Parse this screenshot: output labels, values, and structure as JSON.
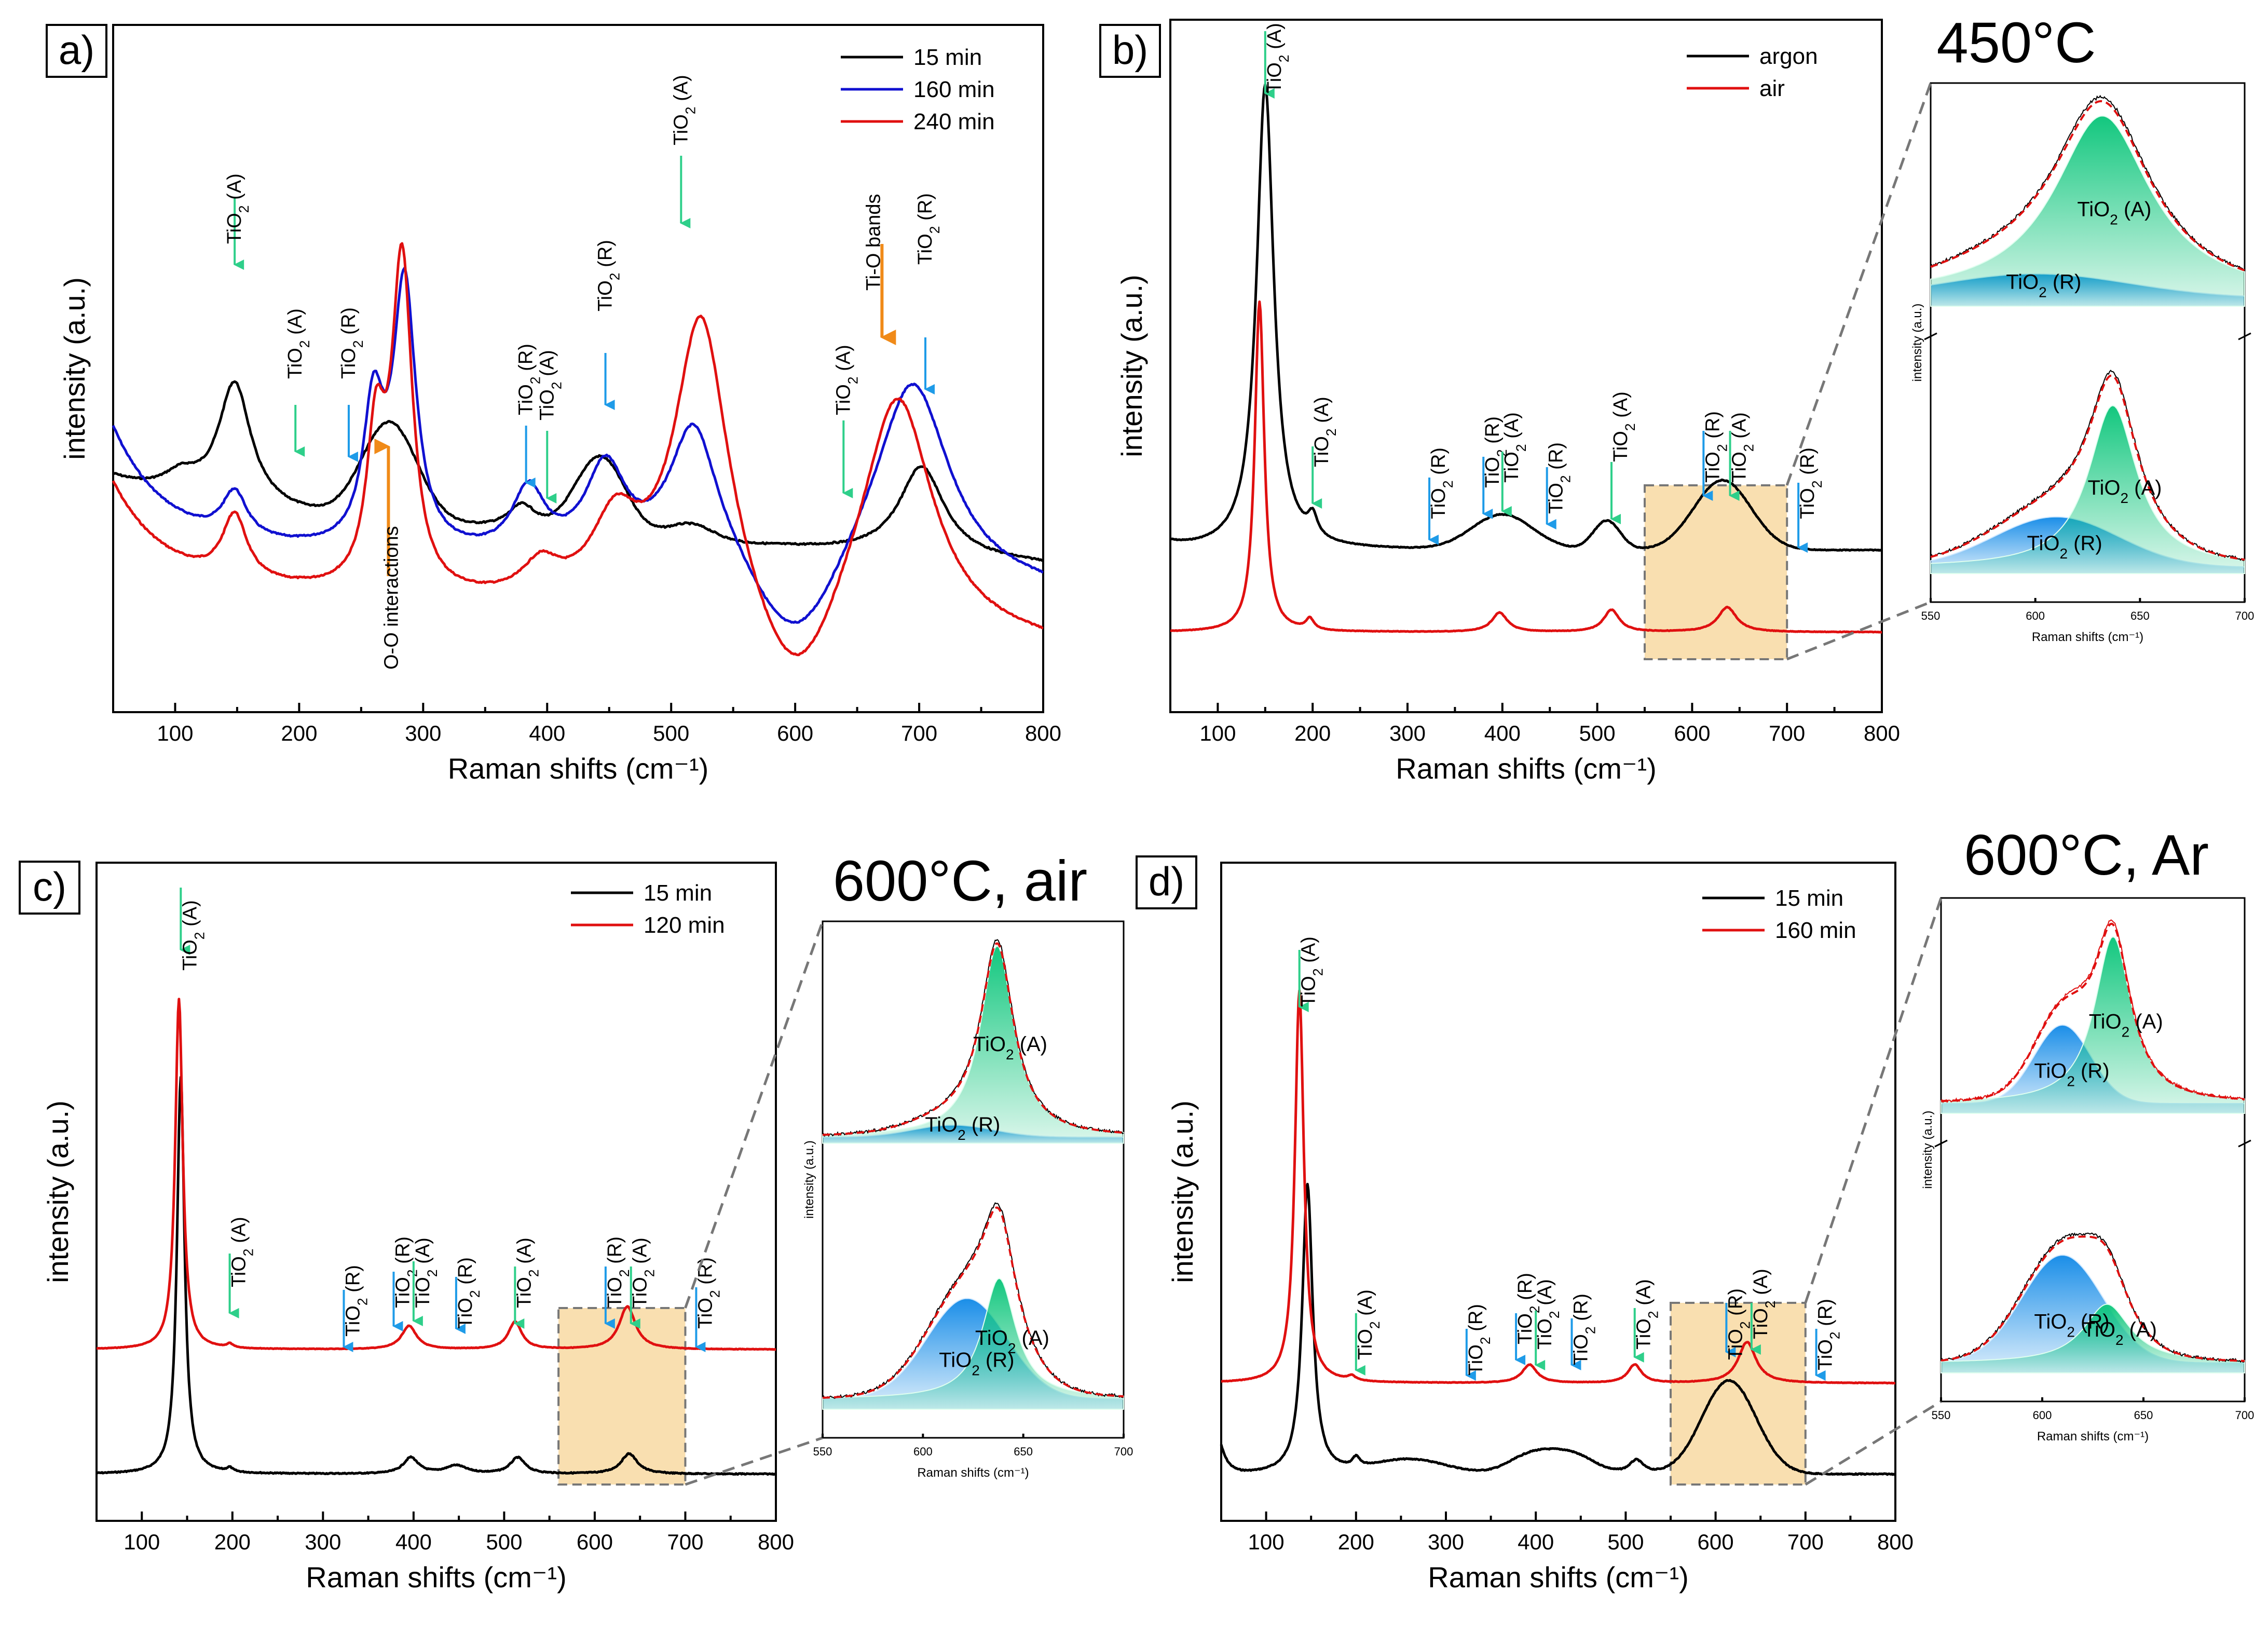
{
  "colors": {
    "black": "#000000",
    "blue": "#1010d0",
    "red": "#e01010",
    "anatase_arrow": "#2ecf8a",
    "rutile_arrow": "#1e9be8",
    "highlight": "#f9dfb0",
    "orange_arrow": "#f08a18",
    "inset_green": "#12c77e",
    "inset_blue": "#1a8ee8",
    "dashed_fit": "#e01010",
    "connector": "#777777"
  },
  "panels": [
    {
      "id": "a",
      "label": "a)",
      "xlabel": "Raman shifts (cm⁻¹)",
      "ylabel": "intensity (a.u.)",
      "xticks": [
        "100",
        "200",
        "300",
        "400",
        "500",
        "600",
        "700",
        "800"
      ],
      "legend": [
        {
          "label": "15 min",
          "color": "#000000"
        },
        {
          "label": "160 min",
          "color": "#1010d0"
        },
        {
          "label": "240 min",
          "color": "#e01010"
        }
      ],
      "annotations": [
        {
          "text": "TiO2 (A)",
          "kind": "A"
        },
        {
          "text": "TiO2 (A)",
          "kind": "A"
        },
        {
          "text": "TiO2 (R)",
          "kind": "R"
        },
        {
          "text": "O-O interactions",
          "kind": "O"
        },
        {
          "text": "TiO2 (R)",
          "kind": "R"
        },
        {
          "text": "TiO2 (A)",
          "kind": "A"
        },
        {
          "text": "TiO2 (R)",
          "kind": "R"
        },
        {
          "text": "TiO2 (A)",
          "kind": "A"
        },
        {
          "text": "TiO2 (A)",
          "kind": "A"
        },
        {
          "text": "Ti-O bands",
          "kind": "O"
        },
        {
          "text": "TiO2 (R)",
          "kind": "R"
        }
      ]
    },
    {
      "id": "b",
      "label": "b)",
      "xlabel": "Raman shifts (cm⁻¹)",
      "ylabel": "intensity (a.u.)",
      "xticks": [
        "100",
        "200",
        "300",
        "400",
        "500",
        "600",
        "700",
        "800"
      ],
      "legend": [
        {
          "label": "argon",
          "color": "#000000"
        },
        {
          "label": "air",
          "color": "#e01010"
        }
      ],
      "title": "450°C",
      "inset": {
        "xlabel": "Raman shifts (cm⁻¹)",
        "ylabel": "intensity (a.u.)",
        "xticks": [
          "550",
          "600",
          "650",
          "700"
        ]
      }
    },
    {
      "id": "c",
      "label": "c)",
      "xlabel": "Raman shifts (cm⁻¹)",
      "ylabel": "intensity (a.u.)",
      "xticks": [
        "100",
        "200",
        "300",
        "400",
        "500",
        "600",
        "700",
        "800"
      ],
      "legend": [
        {
          "label": "15 min",
          "color": "#000000"
        },
        {
          "label": "120 min",
          "color": "#e01010"
        }
      ],
      "title": "600°C, air",
      "inset": {
        "xlabel": "Raman shifts (cm⁻¹)",
        "ylabel": "intensity (a.u.)",
        "xticks": [
          "550",
          "600",
          "650",
          "700"
        ]
      }
    },
    {
      "id": "d",
      "label": "d)",
      "xlabel": "Raman shifts (cm⁻¹)",
      "ylabel": "intensity (a.u.)",
      "xticks": [
        "100",
        "200",
        "300",
        "400",
        "500",
        "600",
        "700",
        "800"
      ],
      "legend": [
        {
          "label": "15 min",
          "color": "#000000"
        },
        {
          "label": "160 min",
          "color": "#e01010"
        }
      ],
      "title": "600°C, Ar",
      "inset": {
        "xlabel": "Raman shifts (cm⁻¹)",
        "ylabel": "intensity (a.u.)",
        "xticks": [
          "550",
          "600",
          "650",
          "700"
        ]
      }
    }
  ],
  "band_labels": {
    "anatase": "TiO2 (A)",
    "rutile": "TiO2 (R)",
    "anatase_prefix": "TiO",
    "sub": "2",
    "anatase_suffix": " (A)",
    "rutile_suffix": " (R)"
  },
  "chart_data": [
    {
      "type": "line",
      "panel": "a",
      "xlabel": "Raman shifts (cm⁻¹)",
      "ylabel": "intensity (a.u.)",
      "xlim": [
        50,
        800
      ],
      "series": [
        {
          "name": "15 min",
          "peaks_cm": [
            105,
            148,
            275,
            380,
            443,
            700
          ],
          "baseline": "decaying"
        },
        {
          "name": "160 min",
          "peaks_cm": [
            148,
            262,
            285,
            385,
            447,
            518,
            695
          ],
          "baseline": "decaying"
        },
        {
          "name": "240 min",
          "peaks_cm": [
            148,
            262,
            283,
            395,
            455,
            525,
            683
          ],
          "baseline": "decaying"
        }
      ],
      "band_positions_cm": {
        "anatase": [
          148,
          197,
          400,
          516,
          639
        ],
        "rutile": [
          240,
          385,
          447,
          705
        ]
      }
    },
    {
      "type": "line",
      "panel": "b",
      "xlim": [
        50,
        800
      ],
      "series": [
        {
          "name": "argon",
          "peaks_cm": [
            150,
            200,
            400,
            510,
            632
          ]
        },
        {
          "name": "air",
          "peaks_cm": [
            144,
            197,
            397,
            515,
            637
          ]
        }
      ],
      "highlight_range_cm": [
        550,
        700
      ],
      "inset_xlim": [
        550,
        700
      ]
    },
    {
      "type": "line",
      "panel": "c",
      "xlim": [
        50,
        800
      ],
      "series": [
        {
          "name": "15 min",
          "peaks_cm": [
            143,
            197,
            397,
            447,
            515,
            638
          ]
        },
        {
          "name": "120 min",
          "peaks_cm": [
            141,
            197,
            395,
            512,
            636
          ]
        }
      ],
      "highlight_range_cm": [
        560,
        700
      ],
      "inset_xlim": [
        550,
        700
      ]
    },
    {
      "type": "line",
      "panel": "d",
      "xlim": [
        50,
        800
      ],
      "series": [
        {
          "name": "15 min",
          "peaks_cm": [
            146,
            200,
            250,
            395,
            440,
            512,
            612
          ]
        },
        {
          "name": "160 min",
          "peaks_cm": [
            137,
            195,
            393,
            510,
            635
          ]
        }
      ],
      "highlight_range_cm": [
        550,
        700
      ],
      "inset_xlim": [
        550,
        700
      ]
    }
  ]
}
